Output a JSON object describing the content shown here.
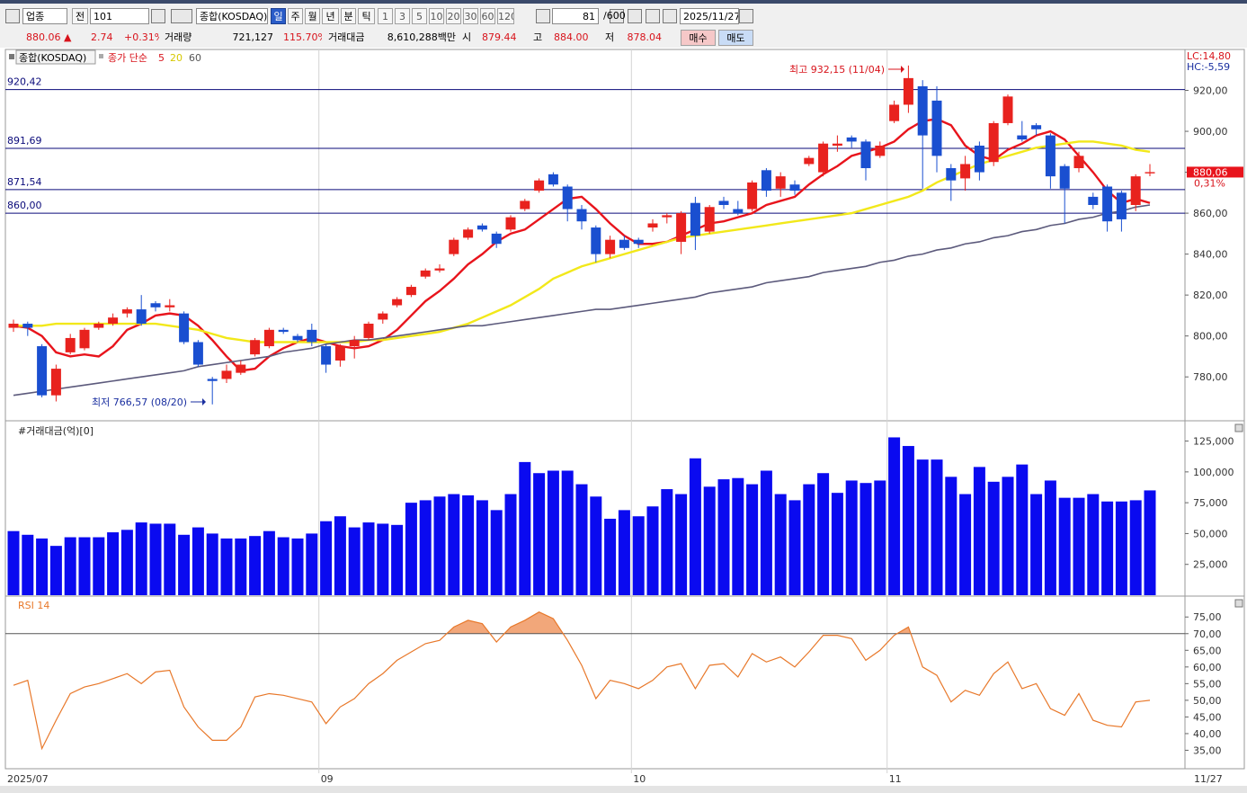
{
  "toolbar": {
    "row1": [
      "업종",
      "전",
      "101",
      "종합(KOSDAQ)",
      "일",
      "주",
      "월",
      "년",
      "분",
      "틱",
      "1",
      "3",
      "5",
      "10",
      "20",
      "30",
      "60",
      "120",
      "81",
      "/600",
      "2025/11/27"
    ],
    "row2": [
      "880.06 ▲",
      "2.74",
      "+0.31%",
      "거래량",
      "721,127",
      "115.70%",
      "거래대금",
      "8,610,288백만",
      "시",
      "879.44",
      "고",
      "884.00",
      "저",
      "878.04",
      "매수",
      "매도"
    ]
  },
  "chart_data": [
    {
      "type": "candlestick",
      "title": "종합(KOSDAQ)",
      "legend_title": "종가 단순",
      "up_color": "#e8221e",
      "down_color": "#1a4fd0",
      "categories": [
        "2025/07",
        null,
        null,
        null,
        null,
        null,
        null,
        null,
        null,
        null,
        null,
        null,
        null,
        null,
        null,
        null,
        null,
        null,
        null,
        null,
        null,
        null,
        "09",
        null,
        null,
        null,
        null,
        null,
        null,
        null,
        null,
        null,
        null,
        null,
        null,
        null,
        null,
        null,
        null,
        null,
        null,
        null,
        null,
        null,
        "10",
        null,
        null,
        null,
        null,
        null,
        null,
        null,
        null,
        null,
        null,
        null,
        null,
        null,
        null,
        null,
        null,
        null,
        "11",
        null,
        null,
        null,
        null,
        null,
        null,
        null,
        null,
        null,
        null,
        null,
        null,
        null,
        null,
        null,
        null,
        null,
        "11/27"
      ],
      "open": [
        804,
        806,
        795,
        771,
        792,
        794,
        804,
        806,
        811,
        813,
        816,
        814,
        811,
        797,
        779,
        779,
        782,
        791,
        795,
        803,
        800,
        803,
        795,
        788,
        795,
        799,
        808,
        815,
        820,
        829,
        832,
        840,
        848,
        854,
        850,
        852,
        862,
        871,
        879,
        873,
        862,
        853,
        840,
        847,
        847,
        853,
        858,
        846,
        865,
        851,
        866,
        862,
        862,
        881,
        872,
        874,
        884,
        880,
        893,
        897,
        895,
        888,
        905,
        913,
        922,
        915,
        882,
        877,
        893,
        885,
        904,
        898,
        903,
        898,
        883,
        882,
        868,
        873,
        870,
        864,
        879.44
      ],
      "high": [
        808,
        807,
        796,
        786,
        801,
        804,
        807,
        811,
        814,
        820,
        817,
        818,
        812,
        798,
        780,
        786,
        788,
        799,
        804,
        804,
        801,
        806,
        796,
        796,
        800,
        807,
        812,
        819,
        825,
        833,
        835,
        848,
        853,
        855,
        851,
        859,
        867,
        877,
        880,
        874,
        864,
        854,
        849,
        849,
        848,
        857,
        860,
        861,
        868,
        864,
        868,
        866,
        876,
        882,
        880,
        876,
        888,
        895,
        898,
        898,
        896,
        895,
        915,
        932.15,
        925,
        922,
        884,
        888,
        895,
        905,
        918,
        905,
        904,
        899,
        884,
        890,
        870,
        874,
        871,
        879,
        884
      ],
      "low": [
        802,
        800,
        770,
        768,
        791,
        793,
        803,
        805,
        809,
        805,
        812,
        812,
        796,
        785,
        766.57,
        777,
        781,
        790,
        794,
        801,
        797,
        795,
        782,
        785,
        789,
        798,
        806,
        814,
        819,
        828,
        831,
        839,
        847,
        851,
        843,
        851,
        861,
        870,
        873,
        856,
        852,
        836,
        838,
        842,
        843,
        851,
        855,
        840,
        842,
        850,
        862,
        859,
        861,
        868,
        868,
        869,
        883,
        878,
        890,
        892,
        876,
        887,
        904,
        909,
        872,
        880,
        866,
        871,
        876,
        883,
        903,
        895,
        898,
        872,
        855,
        880,
        862,
        851,
        851,
        861,
        878.04
      ],
      "close": [
        806,
        804,
        771,
        784,
        799,
        803,
        806,
        809,
        813,
        806,
        814,
        815,
        797,
        786,
        778,
        783,
        786,
        798,
        803,
        802,
        798,
        797,
        786,
        795,
        798,
        806,
        811,
        818,
        824,
        832,
        833,
        847,
        852,
        852,
        845,
        858,
        866,
        876,
        874,
        862,
        856,
        840,
        847,
        843,
        845,
        855,
        859,
        860,
        849,
        863,
        864,
        860,
        875,
        871,
        878,
        871,
        887,
        894,
        894,
        895,
        882,
        893,
        913,
        926,
        898,
        888,
        876,
        884,
        880,
        904,
        917,
        896,
        901,
        878,
        872,
        888,
        864,
        856,
        857,
        878,
        880.06
      ],
      "series": [
        {
          "name": "5",
          "color": "#e8141c",
          "values": [
            805,
            804,
            800,
            792,
            790,
            791,
            790,
            795,
            803,
            806,
            810,
            811,
            810,
            805,
            798,
            790,
            783,
            784,
            790,
            794,
            797,
            799,
            797,
            795,
            794,
            795,
            798,
            803,
            810,
            817,
            822,
            828,
            835,
            840,
            846,
            850,
            852,
            857,
            862,
            867,
            868,
            862,
            855,
            849,
            845,
            845,
            846,
            849,
            852,
            855,
            856,
            858,
            860,
            864,
            866,
            868,
            874,
            879,
            883,
            888,
            890,
            892,
            895,
            901,
            905,
            906,
            903,
            893,
            888,
            886,
            891,
            894,
            898,
            900,
            896,
            888,
            880,
            871,
            865,
            867,
            865
          ]
        },
        {
          "name": "20",
          "color": "#f2e81a",
          "values": [
            805,
            805,
            805,
            806,
            806,
            806,
            806,
            806,
            806,
            806,
            806,
            805,
            804,
            803,
            801,
            799,
            798,
            797,
            797,
            797,
            797,
            797,
            797,
            797,
            797,
            798,
            798,
            799,
            800,
            801,
            802,
            804,
            806,
            809,
            812,
            815,
            819,
            823,
            828,
            831,
            834,
            836,
            838,
            840,
            842,
            844,
            846,
            848,
            849,
            850,
            851,
            852,
            853,
            854,
            855,
            856,
            857,
            858,
            859,
            860,
            862,
            864,
            866,
            868,
            871,
            875,
            878,
            881,
            884,
            886,
            888,
            890,
            892,
            893,
            894,
            895,
            895,
            894,
            893,
            891,
            890
          ]
        },
        {
          "name": "60",
          "color": "#5c5a7c",
          "values": [
            771,
            772,
            773,
            774,
            775,
            776,
            777,
            778,
            779,
            780,
            781,
            782,
            783,
            785,
            786,
            787,
            788,
            789,
            790,
            792,
            793,
            794,
            796,
            797,
            798,
            798,
            799,
            800,
            801,
            802,
            803,
            804,
            805,
            805,
            806,
            807,
            808,
            809,
            810,
            811,
            812,
            813,
            813,
            814,
            815,
            816,
            817,
            818,
            819,
            821,
            822,
            823,
            824,
            826,
            827,
            828,
            829,
            831,
            832,
            833,
            834,
            836,
            837,
            839,
            840,
            842,
            843,
            845,
            846,
            848,
            849,
            851,
            852,
            854,
            855,
            857,
            858,
            860,
            861,
            863,
            864
          ]
        }
      ],
      "levels": [
        {
          "value": 920.42,
          "label": "920,42"
        },
        {
          "value": 891.69,
          "label": "891,69"
        },
        {
          "value": 871.54,
          "label": "871,54"
        },
        {
          "value": 860.0,
          "label": "860,00"
        }
      ],
      "annotations": [
        "최고 932,15 (11/04)",
        "최저 766,57 (08/20)"
      ],
      "lc_label": "LC:14,80",
      "hc_label": "HC:-5,59",
      "last_label": "880,06",
      "change_label": "0,31%",
      "ylim": [
        759,
        940
      ],
      "yticks": [
        {
          "value": 780,
          "label": "780,00"
        },
        {
          "value": 800,
          "label": "800,00"
        },
        {
          "value": 820,
          "label": "820,00"
        },
        {
          "value": 840,
          "label": "840,00"
        },
        {
          "value": 860,
          "label": "860,00"
        },
        {
          "value": 880,
          "label": "880,00"
        },
        {
          "value": 900,
          "label": "900,00"
        },
        {
          "value": 920,
          "label": "920,00"
        }
      ]
    },
    {
      "type": "bar",
      "title": "#거래대금(억)[0]",
      "color": "#0a0af0",
      "values": [
        52000,
        49000,
        46000,
        40000,
        47000,
        47000,
        47000,
        51000,
        53000,
        59000,
        58000,
        58000,
        49000,
        55000,
        50000,
        46000,
        46000,
        48000,
        52000,
        47000,
        46000,
        50000,
        60000,
        64000,
        55000,
        59000,
        58000,
        57000,
        75000,
        77000,
        80000,
        82000,
        81000,
        77000,
        69000,
        82000,
        108000,
        99000,
        101000,
        101000,
        90000,
        80000,
        62000,
        69000,
        64000,
        72000,
        86000,
        82000,
        111000,
        88000,
        94000,
        95000,
        90000,
        101000,
        82000,
        77000,
        90000,
        99000,
        83000,
        93000,
        91000,
        93000,
        128000,
        121000,
        110000,
        110000,
        96000,
        82000,
        104000,
        92000,
        96000,
        106000,
        82000,
        93000,
        79000,
        79000,
        82000,
        76000,
        76000,
        77000,
        85000
      ],
      "ylim": [
        0,
        140000
      ],
      "yticks": [
        {
          "value": 25000,
          "label": "25,000"
        },
        {
          "value": 50000,
          "label": "50,000"
        },
        {
          "value": 75000,
          "label": "75,000"
        },
        {
          "value": 100000,
          "label": "100,000"
        },
        {
          "value": 125000,
          "label": "125,000"
        }
      ]
    },
    {
      "type": "line",
      "title": "RSI 14",
      "color": "#e8782a",
      "fill_color": "#f2a77a",
      "level": 70,
      "values": [
        54.5,
        56,
        35.5,
        44,
        52,
        54,
        55,
        56.5,
        58,
        55,
        58.5,
        59,
        48,
        42,
        38,
        38,
        42,
        51,
        52,
        51.5,
        50.5,
        49.5,
        43,
        48,
        50.5,
        55,
        58,
        62,
        64.5,
        67,
        68,
        72,
        74,
        73,
        67.5,
        72,
        74,
        76.5,
        74.5,
        68,
        60.5,
        50.5,
        56,
        55,
        53.5,
        56,
        60,
        61,
        53.5,
        60.5,
        61,
        57,
        64,
        61.5,
        63,
        60,
        64.5,
        69.5,
        69.5,
        68.5,
        62,
        65,
        69.5,
        72,
        60,
        57.5,
        49.5,
        53,
        51.5,
        58,
        61.5,
        53.5,
        55,
        47.5,
        45.5,
        52,
        44,
        42.5,
        42,
        49.5,
        50
      ],
      "ylim": [
        30,
        81
      ],
      "yticks": [
        {
          "value": 35,
          "label": "35,00"
        },
        {
          "value": 40,
          "label": "40,00"
        },
        {
          "value": 45,
          "label": "45,00"
        },
        {
          "value": 50,
          "label": "50,00"
        },
        {
          "value": 55,
          "label": "55,00"
        },
        {
          "value": 60,
          "label": "60,00"
        },
        {
          "value": 65,
          "label": "65,00"
        },
        {
          "value": 70,
          "label": "70,00"
        },
        {
          "value": 75,
          "label": "75,00"
        }
      ]
    }
  ]
}
